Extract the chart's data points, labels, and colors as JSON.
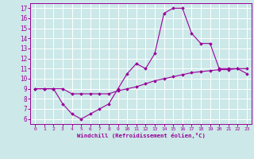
{
  "xlabel": "Windchill (Refroidissement éolien,°C)",
  "xlim": [
    -0.5,
    23.5
  ],
  "ylim": [
    5.5,
    17.5
  ],
  "xticks": [
    0,
    1,
    2,
    3,
    4,
    5,
    6,
    7,
    8,
    9,
    10,
    11,
    12,
    13,
    14,
    15,
    16,
    17,
    18,
    19,
    20,
    21,
    22,
    23
  ],
  "yticks": [
    6,
    7,
    8,
    9,
    10,
    11,
    12,
    13,
    14,
    15,
    16,
    17
  ],
  "line_color": "#990099",
  "bg_color": "#cce8e8",
  "grid_color": "#ffffff",
  "curve1_x": [
    0,
    1,
    2,
    3,
    4,
    5,
    6,
    7,
    8,
    9,
    10,
    11,
    12,
    13,
    14,
    15,
    16,
    17,
    18,
    19,
    20,
    21,
    22,
    23
  ],
  "curve1_y": [
    9.0,
    9.0,
    9.0,
    7.5,
    6.5,
    6.0,
    6.5,
    7.0,
    7.5,
    9.0,
    10.5,
    11.5,
    11.0,
    12.5,
    16.5,
    17.0,
    17.0,
    14.5,
    13.5,
    13.5,
    11.0,
    11.0,
    11.0,
    11.0
  ],
  "curve2_x": [
    0,
    1,
    2,
    3,
    4,
    5,
    6,
    7,
    8,
    9,
    10,
    11,
    12,
    13,
    14,
    15,
    16,
    17,
    18,
    19,
    20,
    21,
    22,
    23
  ],
  "curve2_y": [
    9.0,
    9.0,
    9.0,
    9.0,
    8.5,
    8.5,
    8.5,
    8.5,
    8.5,
    8.8,
    9.0,
    9.2,
    9.5,
    9.8,
    10.0,
    10.2,
    10.4,
    10.6,
    10.7,
    10.8,
    10.9,
    10.9,
    11.0,
    10.5
  ]
}
